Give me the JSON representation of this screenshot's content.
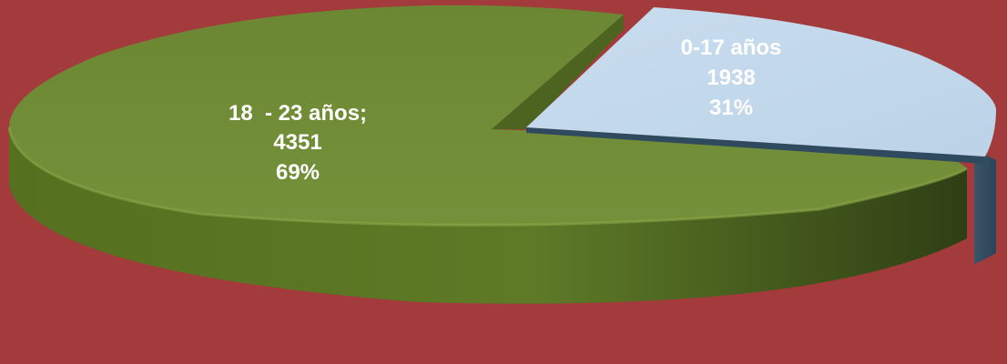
{
  "chart_data": {
    "type": "pie",
    "title": "",
    "legend": "none",
    "colors": {
      "background": "#a33b3c",
      "slice_0_17_top": "#c6dbec",
      "slice_0_17_side": "#2f4a5e",
      "slice_18_23_top": "#6f8a35",
      "slice_18_23_side": "#4f6520"
    },
    "slices": [
      {
        "category": "0-17 años",
        "value": 1938,
        "percent": "31%",
        "label_category": "0-17 años",
        "label_value": "1938",
        "label_percent": "31%"
      },
      {
        "category": "18 - 23 años",
        "value": 4351,
        "percent": "69%",
        "label_category": "18  - 23 años;",
        "label_value": "4351",
        "label_percent": "69%"
      }
    ]
  }
}
